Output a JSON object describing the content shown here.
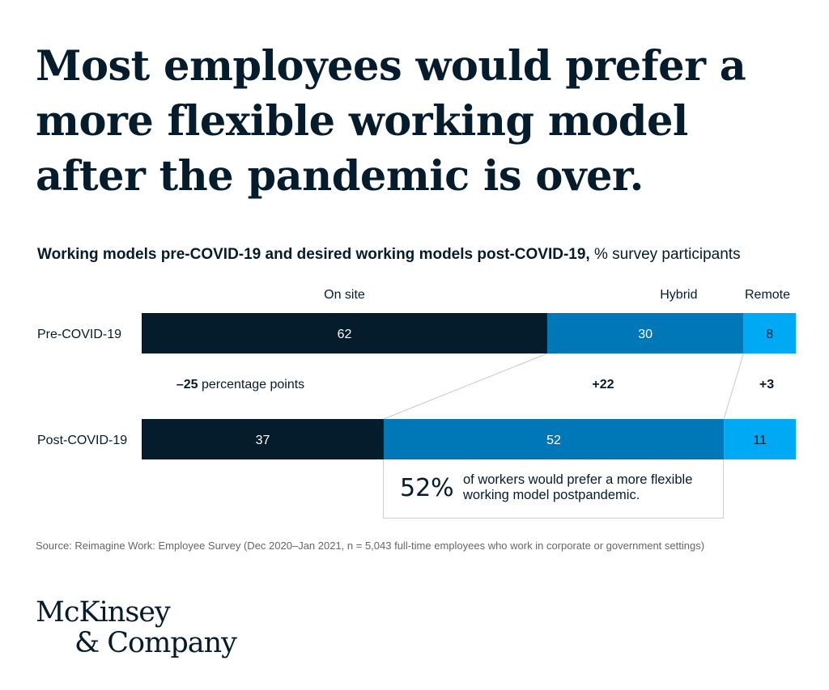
{
  "headline": "Most employees would prefer a more flexible working model after the pandemic is over.",
  "subtitle_bold": "Working models pre-COVID-19 and desired working models post-COVID-19,",
  "subtitle_rest": " % survey participants",
  "colors": {
    "on_site": "#051c2c",
    "hybrid": "#0077b6",
    "remote": "#00a9f4",
    "background": "#ffffff"
  },
  "chart_data": {
    "type": "bar",
    "orientation": "horizontal",
    "stacked": true,
    "categories": [
      "Pre-COVID-19",
      "Post-COVID-19"
    ],
    "series": [
      {
        "name": "On site",
        "values": [
          62,
          37
        ]
      },
      {
        "name": "Hybrid",
        "values": [
          30,
          52
        ]
      },
      {
        "name": "Remote",
        "values": [
          8,
          11
        ]
      }
    ],
    "changes": [
      {
        "series": "On site",
        "value": "–25",
        "suffix": " percentage points"
      },
      {
        "series": "Hybrid",
        "value": "+22",
        "suffix": ""
      },
      {
        "series": "Remote",
        "value": "+3",
        "suffix": ""
      }
    ],
    "xlim": [
      0,
      100
    ],
    "grid": false,
    "legend": "top"
  },
  "callout": {
    "value": "52%",
    "text": "of workers would prefer a more flexible working model postpandemic."
  },
  "source": "Source: Reimagine Work: Employee Survey (Dec 2020–Jan 2021, n = 5,043 full-time employees who work in corporate or government settings)",
  "logo": {
    "line1": "McKinsey",
    "line2": "& Company"
  }
}
